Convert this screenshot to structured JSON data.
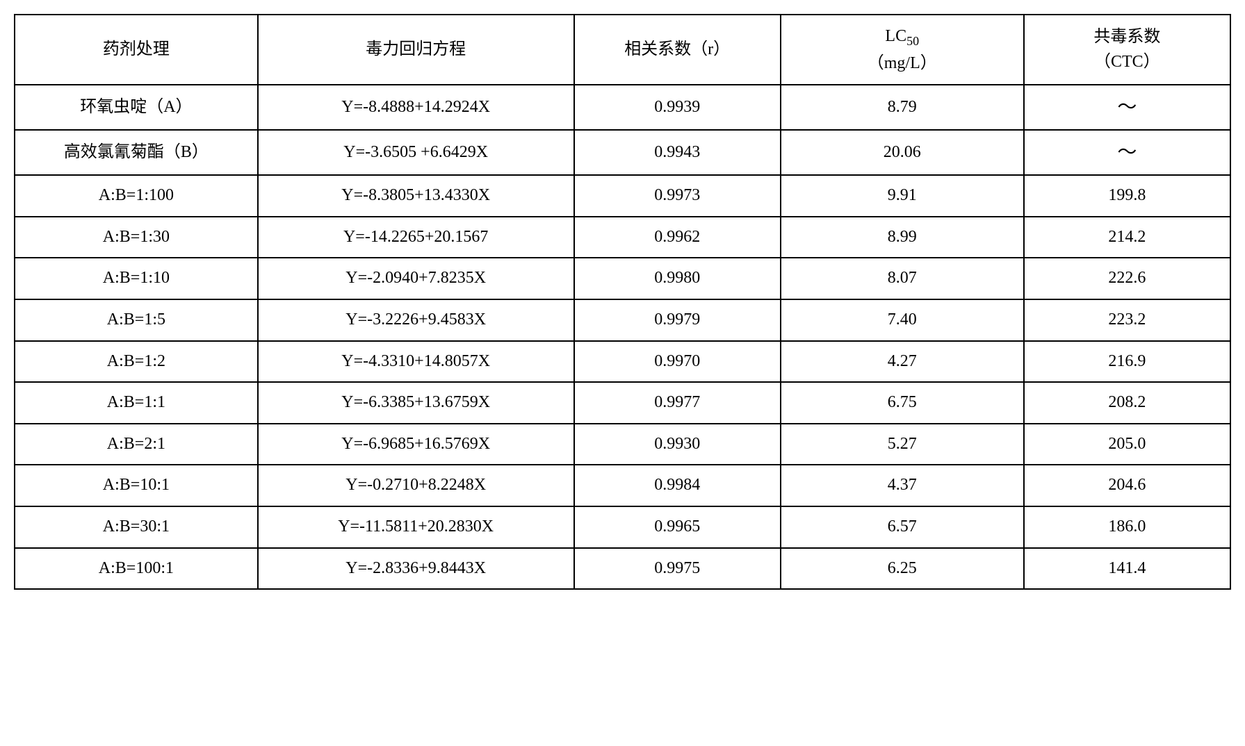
{
  "table": {
    "type": "table",
    "background_color": "#ffffff",
    "border_color": "#000000",
    "text_color": "#000000",
    "font_family": "SimSun, 宋体, serif",
    "font_size_pt": 18,
    "columns": [
      {
        "key": "treatment",
        "label": "药剂处理",
        "width_pct": 20,
        "align": "center"
      },
      {
        "key": "regression",
        "label": "毒力回归方程",
        "width_pct": 26,
        "align": "center"
      },
      {
        "key": "correlation",
        "label": "相关系数（r）",
        "width_pct": 17,
        "align": "center"
      },
      {
        "key": "lc50",
        "label_line1": "LC",
        "label_sub": "50",
        "label_line2": "（mg/L）",
        "width_pct": 20,
        "align": "center"
      },
      {
        "key": "ctc",
        "label_line1": "共毒系数",
        "label_line2": "（CTC）",
        "width_pct": 17,
        "align": "center"
      }
    ],
    "rows": [
      {
        "treatment": "环氧虫啶（A）",
        "regression": "Y=-8.4888+14.2924X",
        "correlation": "0.9939",
        "lc50": "8.79",
        "ctc": "～"
      },
      {
        "treatment": "高效氯氰菊酯（B）",
        "regression": "Y=-3.6505 +6.6429X",
        "correlation": "0.9943",
        "lc50": "20.06",
        "ctc": "～"
      },
      {
        "treatment": "A:B=1:100",
        "regression": "Y=-8.3805+13.4330X",
        "correlation": "0.9973",
        "lc50": "9.91",
        "ctc": "199.8"
      },
      {
        "treatment": "A:B=1:30",
        "regression": "Y=-14.2265+20.1567",
        "correlation": "0.9962",
        "lc50": "8.99",
        "ctc": "214.2"
      },
      {
        "treatment": "A:B=1:10",
        "regression": "Y=-2.0940+7.8235X",
        "correlation": "0.9980",
        "lc50": "8.07",
        "ctc": "222.6"
      },
      {
        "treatment": "A:B=1:5",
        "regression": "Y=-3.2226+9.4583X",
        "correlation": "0.9979",
        "lc50": "7.40",
        "ctc": "223.2"
      },
      {
        "treatment": "A:B=1:2",
        "regression": "Y=-4.3310+14.8057X",
        "correlation": "0.9970",
        "lc50": "4.27",
        "ctc": "216.9"
      },
      {
        "treatment": "A:B=1:1",
        "regression": "Y=-6.3385+13.6759X",
        "correlation": "0.9977",
        "lc50": "6.75",
        "ctc": "208.2"
      },
      {
        "treatment": "A:B=2:1",
        "regression": "Y=-6.9685+16.5769X",
        "correlation": "0.9930",
        "lc50": "5.27",
        "ctc": "205.0"
      },
      {
        "treatment": "A:B=10:1",
        "regression": "Y=-0.2710+8.2248X",
        "correlation": "0.9984",
        "lc50": "4.37",
        "ctc": "204.6"
      },
      {
        "treatment": "A:B=30:1",
        "regression": "Y=-11.5811+20.2830X",
        "correlation": "0.9965",
        "lc50": "6.57",
        "ctc": "186.0"
      },
      {
        "treatment": "A:B=100:1",
        "regression": "Y=-2.8336+9.8443X",
        "correlation": "0.9975",
        "lc50": "6.25",
        "ctc": "141.4"
      }
    ]
  }
}
